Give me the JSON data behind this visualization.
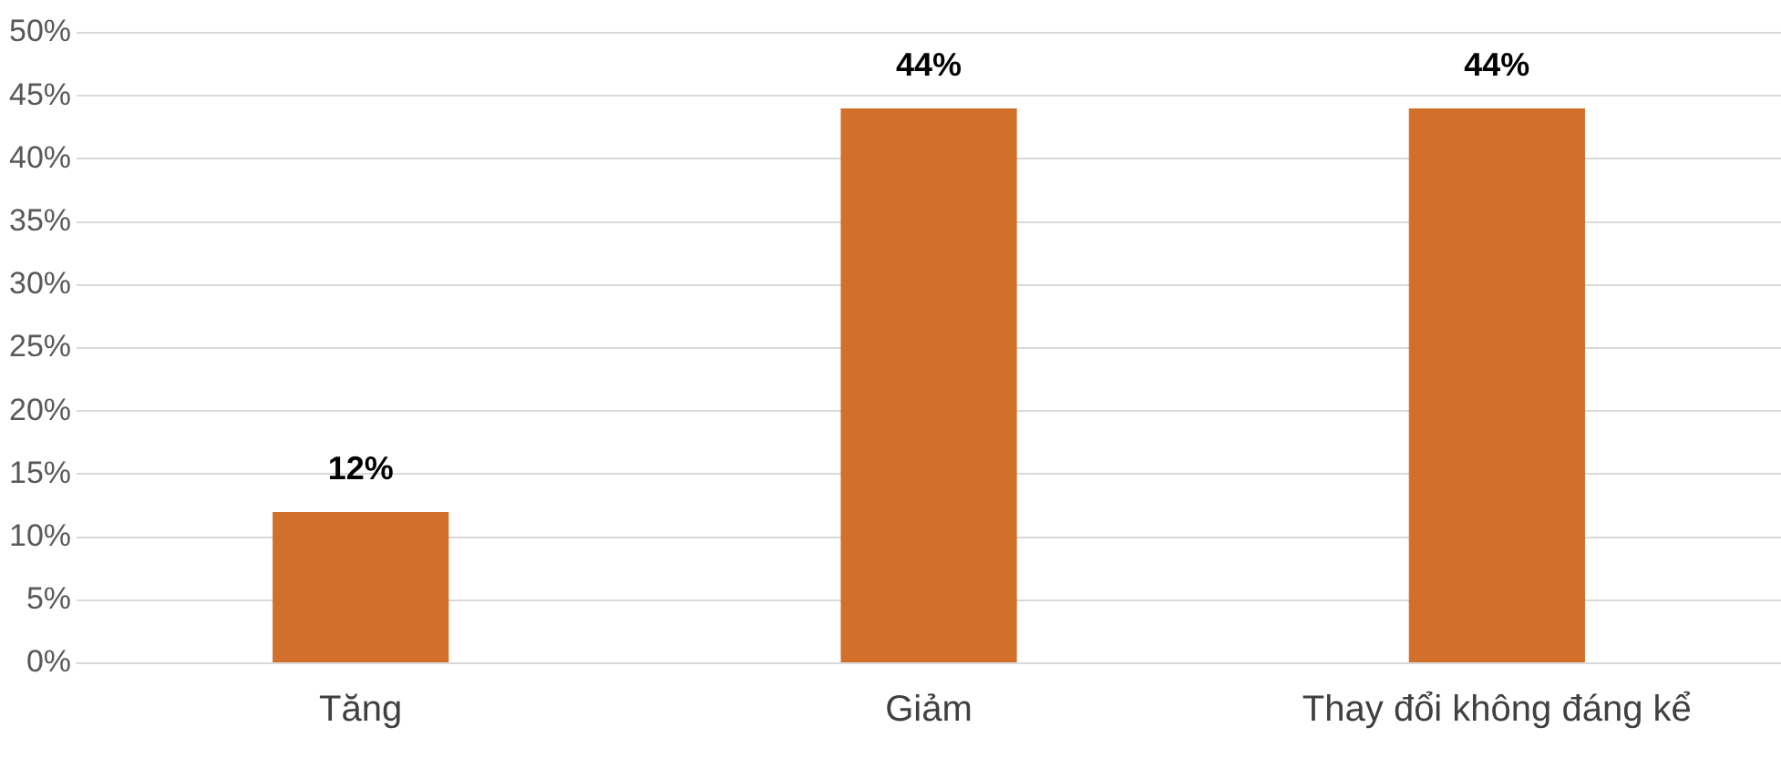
{
  "chart_data": {
    "type": "bar",
    "categories": [
      "Tăng",
      "Giảm",
      "Thay đổi không đáng kể"
    ],
    "values": [
      12,
      44,
      44
    ],
    "color": "#d2702b",
    "ylim": [
      0,
      50
    ],
    "yticks": [
      {
        "value": 0,
        "label": "0%"
      },
      {
        "value": 5,
        "label": "5%"
      },
      {
        "value": 10,
        "label": "10%"
      },
      {
        "value": 15,
        "label": "15%"
      },
      {
        "value": 20,
        "label": "20%"
      },
      {
        "value": 25,
        "label": "25%"
      },
      {
        "value": 30,
        "label": "30%"
      },
      {
        "value": 35,
        "label": "35%"
      },
      {
        "value": 40,
        "label": "40%"
      },
      {
        "value": 45,
        "label": "45%"
      },
      {
        "value": 50,
        "label": "50%"
      }
    ],
    "value_labels": [
      "12%",
      "44%",
      "44%"
    ],
    "grid": "y",
    "legend": false
  }
}
